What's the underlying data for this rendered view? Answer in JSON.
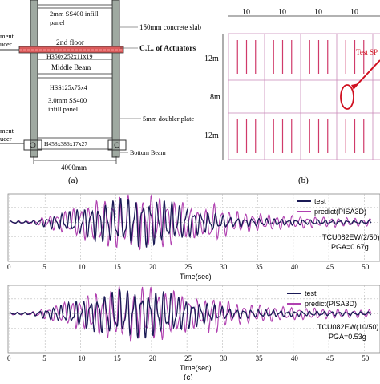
{
  "panel_a": {
    "caption": "(a)",
    "labels": {
      "infill_top": [
        "2mm SS400 infill",
        "panel"
      ],
      "slab": "150mm concrete slab",
      "floor2": "2nd floor",
      "actuators": "C.L. of Actuators",
      "beam_top": "H350x252x11x19",
      "middle_beam": "Middle Beam",
      "hss": "HSS125x75x4",
      "infill_mid": [
        "3.0mm SS400",
        "infill panel"
      ],
      "doubler": "5mm doubler plate",
      "beam_bottom": "H458x386x17x27",
      "bottom_beam": "Bottom Beam",
      "width": "4000mm",
      "left_1": [
        "ment",
        "ucer"
      ],
      "left_2": [
        "ment",
        "ucer"
      ]
    }
  },
  "panel_b": {
    "caption": "(b)",
    "spans_x": [
      "10",
      "10",
      "10",
      "10"
    ],
    "spans_y": [
      "12m",
      "8m",
      "12m"
    ],
    "callout": "Test SP"
  },
  "panel_c": {
    "caption": "(c)",
    "x_axis_label": "Time(sec)",
    "plots": [
      {
        "legend": [
          "test",
          "predict(PISA3D)"
        ],
        "record": "TCU082EW(2/50)",
        "pga": "PGA=0.67g",
        "ticks": [
          "0",
          "5",
          "10",
          "15",
          "20",
          "25",
          "30",
          "35",
          "40",
          "45",
          "50"
        ]
      },
      {
        "legend": [
          "test",
          "predict(PISA3D)"
        ],
        "record": "TCU082EW(10/50)",
        "pga": "PGA=0.53g",
        "ticks": [
          "0",
          "5",
          "10",
          "15",
          "20",
          "25",
          "30",
          "35",
          "40",
          "45",
          "50"
        ]
      }
    ]
  },
  "colors": {
    "test": "#1a1a55",
    "predict": "#b040b0",
    "grid_b": "#cc0077",
    "callout": "#d01020"
  }
}
